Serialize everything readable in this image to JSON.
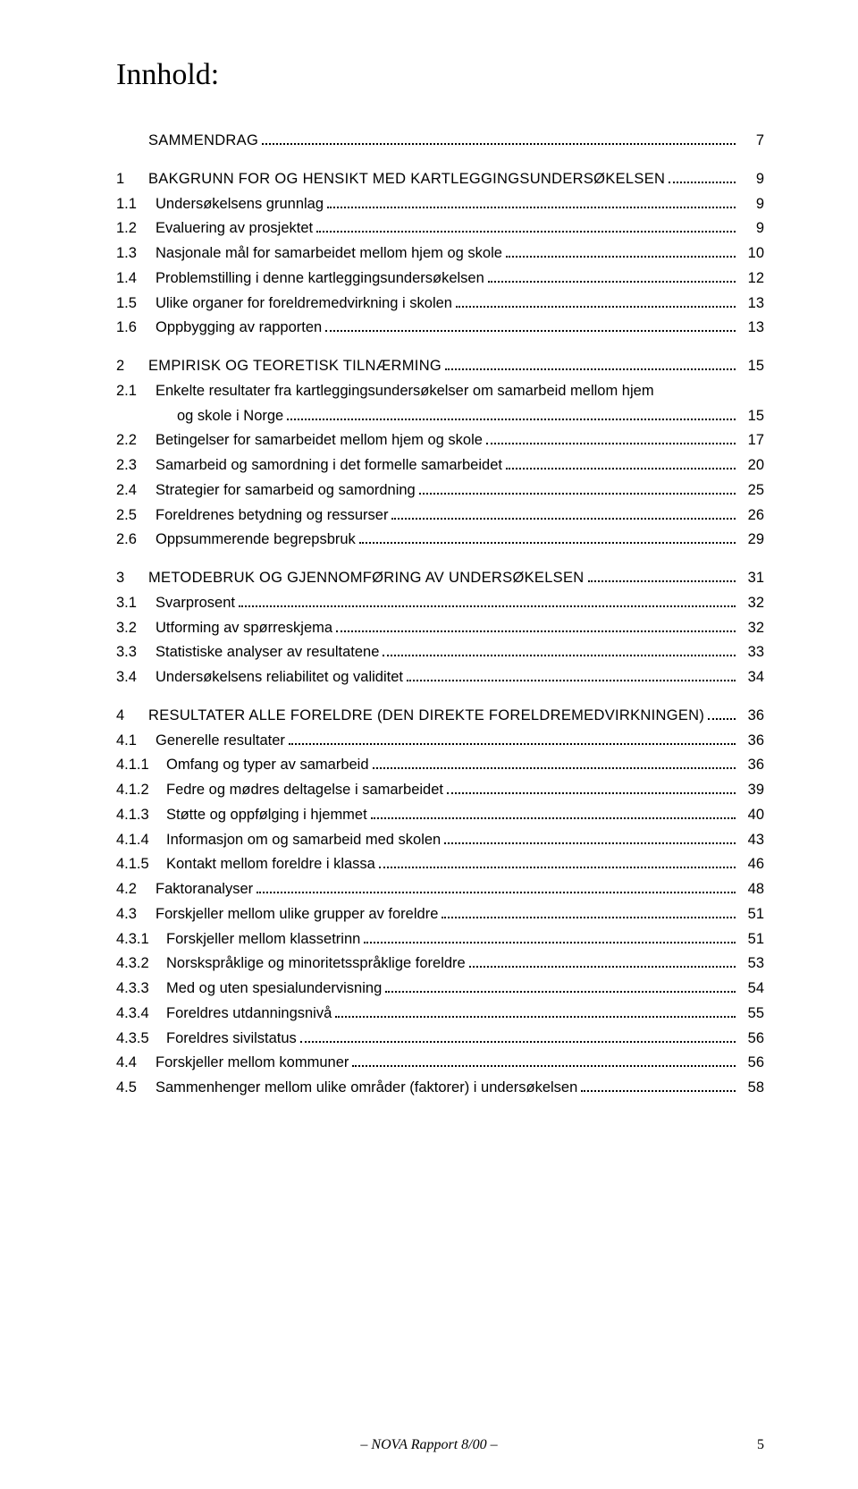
{
  "title": "Innhold:",
  "footer": {
    "text": "– NOVA Rapport 8/00 –",
    "page": "5"
  },
  "toc": [
    {
      "num": "",
      "label": "SAMMENDRAG",
      "page": "7",
      "smallcaps": true,
      "spaced": false
    },
    {
      "num": "1",
      "label": "BAKGRUNN FOR OG HENSIKT MED KARTLEGGINGSUNDERSØKELSEN",
      "page": "9",
      "smallcaps": true,
      "spaced": true
    },
    {
      "num": "1.1",
      "label": "Undersøkelsens grunnlag",
      "page": "9"
    },
    {
      "num": "1.2",
      "label": "Evaluering av prosjektet",
      "page": "9"
    },
    {
      "num": "1.3",
      "label": "Nasjonale mål for samarbeidet mellom hjem og skole",
      "page": "10"
    },
    {
      "num": "1.4",
      "label": "Problemstilling i denne kartleggingsundersøkelsen",
      "page": "12"
    },
    {
      "num": "1.5",
      "label": "Ulike organer for foreldremedvirkning i skolen",
      "page": "13"
    },
    {
      "num": "1.6",
      "label": "Oppbygging av rapporten",
      "page": "13"
    },
    {
      "num": "2",
      "label": "EMPIRISK OG TEORETISK TILNÆRMING",
      "page": "15",
      "smallcaps": true,
      "spaced": true
    },
    {
      "num": "2.1",
      "label": "Enkelte resultater fra kartleggingsundersøkelser om samarbeid mellom hjem",
      "page": "",
      "nopage": true
    },
    {
      "num": "",
      "label": "og skole i Norge",
      "page": "15",
      "cont": true
    },
    {
      "num": "2.2",
      "label": "Betingelser for samarbeidet mellom hjem og skole",
      "page": "17"
    },
    {
      "num": "2.3",
      "label": "Samarbeid og samordning i det formelle samarbeidet",
      "page": "20"
    },
    {
      "num": "2.4",
      "label": "Strategier for samarbeid og samordning",
      "page": "25"
    },
    {
      "num": "2.5",
      "label": "Foreldrenes betydning og ressurser",
      "page": "26"
    },
    {
      "num": "2.6",
      "label": "Oppsummerende begrepsbruk",
      "page": "29"
    },
    {
      "num": "3",
      "label": "METODEBRUK OG GJENNOMFØRING AV UNDERSØKELSEN",
      "page": "31",
      "smallcaps": true,
      "spaced": true
    },
    {
      "num": "3.1",
      "label": "Svarprosent",
      "page": "32"
    },
    {
      "num": "3.2",
      "label": "Utforming av spørreskjema",
      "page": "32"
    },
    {
      "num": "3.3",
      "label": "Statistiske analyser av resultatene",
      "page": "33"
    },
    {
      "num": "3.4",
      "label": "Undersøkelsens reliabilitet og validitet",
      "page": "34"
    },
    {
      "num": "4",
      "label": "RESULTATER ALLE FORELDRE (DEN DIREKTE FORELDREMEDVIRKNINGEN)",
      "page": "36",
      "smallcaps": true,
      "spaced": true
    },
    {
      "num": "4.1",
      "label": "Generelle resultater",
      "page": "36"
    },
    {
      "num": "4.1.1",
      "label": "Omfang og typer av samarbeid",
      "page": "36",
      "subsub": true
    },
    {
      "num": "4.1.2",
      "label": "Fedre og mødres deltagelse i samarbeidet",
      "page": "39",
      "subsub": true
    },
    {
      "num": "4.1.3",
      "label": "Støtte og oppfølging i hjemmet",
      "page": "40",
      "subsub": true
    },
    {
      "num": "4.1.4",
      "label": "Informasjon om og samarbeid med skolen",
      "page": "43",
      "subsub": true
    },
    {
      "num": "4.1.5",
      "label": "Kontakt mellom foreldre i klassa",
      "page": "46",
      "subsub": true
    },
    {
      "num": "4.2",
      "label": "Faktoranalyser",
      "page": "48"
    },
    {
      "num": "4.3",
      "label": "Forskjeller mellom ulike grupper av foreldre",
      "page": "51"
    },
    {
      "num": "4.3.1",
      "label": "Forskjeller mellom klassetrinn",
      "page": "51",
      "subsub": true
    },
    {
      "num": "4.3.2",
      "label": "Norskspråklige og minoritetsspråklige foreldre",
      "page": "53",
      "subsub": true
    },
    {
      "num": "4.3.3",
      "label": "Med og uten spesialundervisning",
      "page": "54",
      "subsub": true
    },
    {
      "num": "4.3.4",
      "label": "Foreldres utdanningsnivå",
      "page": "55",
      "subsub": true
    },
    {
      "num": "4.3.5",
      "label": "Foreldres sivilstatus",
      "page": "56",
      "subsub": true
    },
    {
      "num": "4.4",
      "label": "Forskjeller mellom kommuner",
      "page": "56"
    },
    {
      "num": "4.5",
      "label": "Sammenhenger mellom ulike områder (faktorer) i undersøkelsen",
      "page": "58"
    }
  ]
}
